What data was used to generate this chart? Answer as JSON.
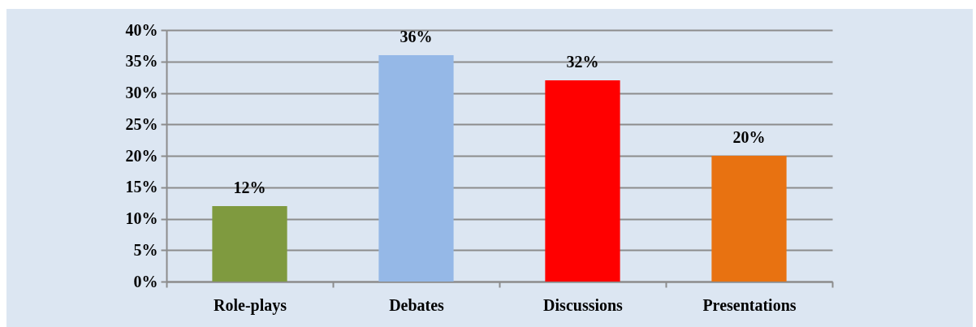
{
  "chart_data": {
    "type": "bar",
    "categories": [
      "Role-plays",
      "Debates",
      "Discussions",
      "Presentations"
    ],
    "values": [
      12,
      36,
      32,
      20
    ],
    "colors": [
      "#7f9a3f",
      "#95b8e7",
      "#ff0000",
      "#e87211"
    ],
    "value_labels": [
      "12%",
      "36%",
      "32%",
      "20%"
    ],
    "ylim": [
      0,
      40
    ],
    "yticks": [
      {
        "value": 0,
        "label": "0%"
      },
      {
        "value": 5,
        "label": "5%"
      },
      {
        "value": 10,
        "label": "10%"
      },
      {
        "value": 15,
        "label": "15%"
      },
      {
        "value": 20,
        "label": "20%"
      },
      {
        "value": 25,
        "label": "25%"
      },
      {
        "value": 30,
        "label": "30%"
      },
      {
        "value": 35,
        "label": "35%"
      },
      {
        "value": 40,
        "label": "40%"
      }
    ],
    "grid": "y"
  }
}
